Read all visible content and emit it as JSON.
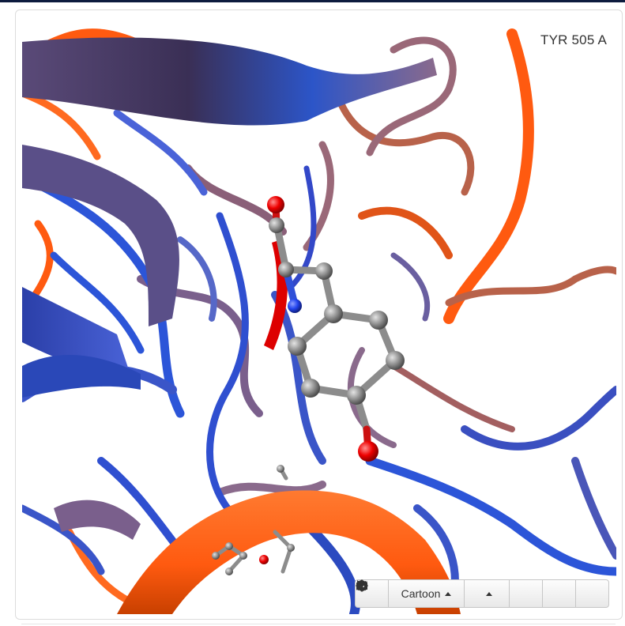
{
  "viewer": {
    "residue_label": "TYR 505 A",
    "colors": {
      "ribbon_blue": "#3a55c8",
      "ribbon_mauve": "#7a5f8c",
      "ribbon_orange": "#ff5a10",
      "ribbon_copper": "#b8624a",
      "highlight_red": "#dd0000",
      "atom_carbon": "#8c8c8c",
      "atom_oxygen": "#ee0000",
      "atom_nitrogen": "#2244ee"
    }
  },
  "toolbar": {
    "settings_icon": "gear-icon",
    "representation_label": "Cartoon",
    "snapshot_icon": "camera-icon",
    "play_icon": "play-icon",
    "eject_icon": "eject-icon",
    "reset_icon": "refresh-icon"
  }
}
